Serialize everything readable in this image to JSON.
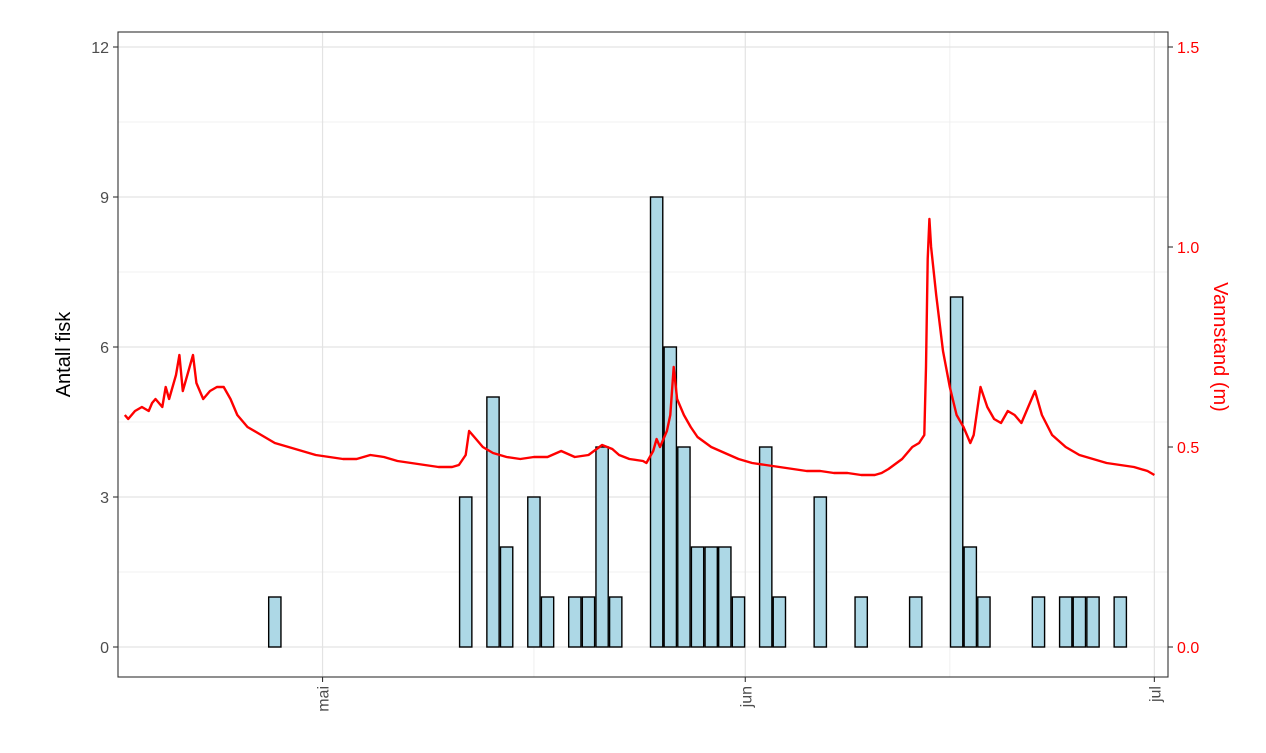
{
  "chart_data": {
    "type": "bar",
    "xlabel": "",
    "ylabel": "Antall fisk",
    "y2label": "Vannstand (m)",
    "x_range": [
      "2023-04-16",
      "2023-07-02"
    ],
    "x_ticks": [
      {
        "date": "2023-05-01",
        "label": "mai"
      },
      {
        "date": "2023-06-01",
        "label": "jun"
      },
      {
        "date": "2023-07-01",
        "label": "jul"
      }
    ],
    "ylim": [
      -0.6,
      12.3
    ],
    "yticks": [
      0,
      3,
      6,
      9,
      12
    ],
    "y2lim": [
      -0.075,
      1.5375
    ],
    "y2ticks": [
      0.0,
      0.5,
      1.0,
      1.5
    ],
    "y2_tick_labels": [
      "0.0",
      "0.5",
      "1.0",
      "1.5"
    ],
    "grid": true,
    "colors": {
      "bar_fill": "#add8e6",
      "bar_stroke": "#000000",
      "line": "#ff0000",
      "axis2_text": "#ff0000"
    },
    "bars": [
      {
        "date": "2023-04-27",
        "value": 1
      },
      {
        "date": "2023-05-11",
        "value": 3
      },
      {
        "date": "2023-05-13",
        "value": 5
      },
      {
        "date": "2023-05-14",
        "value": 2
      },
      {
        "date": "2023-05-16",
        "value": 3
      },
      {
        "date": "2023-05-17",
        "value": 1
      },
      {
        "date": "2023-05-19",
        "value": 1
      },
      {
        "date": "2023-05-20",
        "value": 1
      },
      {
        "date": "2023-05-21",
        "value": 4
      },
      {
        "date": "2023-05-22",
        "value": 1
      },
      {
        "date": "2023-05-25",
        "value": 9
      },
      {
        "date": "2023-05-26",
        "value": 6
      },
      {
        "date": "2023-05-27",
        "value": 4
      },
      {
        "date": "2023-05-28",
        "value": 2
      },
      {
        "date": "2023-05-29",
        "value": 2
      },
      {
        "date": "2023-05-30",
        "value": 2
      },
      {
        "date": "2023-05-31",
        "value": 1
      },
      {
        "date": "2023-06-02",
        "value": 4
      },
      {
        "date": "2023-06-03",
        "value": 1
      },
      {
        "date": "2023-06-06",
        "value": 3
      },
      {
        "date": "2023-06-09",
        "value": 1
      },
      {
        "date": "2023-06-13",
        "value": 1
      },
      {
        "date": "2023-06-16",
        "value": 7
      },
      {
        "date": "2023-06-17",
        "value": 2
      },
      {
        "date": "2023-06-18",
        "value": 1
      },
      {
        "date": "2023-06-22",
        "value": 1
      },
      {
        "date": "2023-06-24",
        "value": 1
      },
      {
        "date": "2023-06-25",
        "value": 1
      },
      {
        "date": "2023-06-26",
        "value": 1
      },
      {
        "date": "2023-06-28",
        "value": 1
      }
    ],
    "water_level": [
      [
        "2023-04-16 12:00",
        0.58
      ],
      [
        "2023-04-16 18:00",
        0.57
      ],
      [
        "2023-04-17 06:00",
        0.59
      ],
      [
        "2023-04-17 18:00",
        0.6
      ],
      [
        "2023-04-18 06:00",
        0.59
      ],
      [
        "2023-04-18 12:00",
        0.61
      ],
      [
        "2023-04-18 18:00",
        0.62
      ],
      [
        "2023-04-19 06:00",
        0.6
      ],
      [
        "2023-04-19 12:00",
        0.65
      ],
      [
        "2023-04-19 18:00",
        0.62
      ],
      [
        "2023-04-20 06:00",
        0.68
      ],
      [
        "2023-04-20 12:00",
        0.73
      ],
      [
        "2023-04-20 18:00",
        0.64
      ],
      [
        "2023-04-21 06:00",
        0.7
      ],
      [
        "2023-04-21 12:00",
        0.73
      ],
      [
        "2023-04-21 18:00",
        0.66
      ],
      [
        "2023-04-22 06:00",
        0.62
      ],
      [
        "2023-04-22 18:00",
        0.64
      ],
      [
        "2023-04-23 06:00",
        0.65
      ],
      [
        "2023-04-23 18:00",
        0.65
      ],
      [
        "2023-04-24 06:00",
        0.62
      ],
      [
        "2023-04-24 18:00",
        0.58
      ],
      [
        "2023-04-25 12:00",
        0.55
      ],
      [
        "2023-04-26 12:00",
        0.53
      ],
      [
        "2023-04-27 12:00",
        0.51
      ],
      [
        "2023-04-28 12:00",
        0.5
      ],
      [
        "2023-04-29 12:00",
        0.49
      ],
      [
        "2023-04-30 12:00",
        0.48
      ],
      [
        "2023-05-01 12:00",
        0.475
      ],
      [
        "2023-05-02 12:00",
        0.47
      ],
      [
        "2023-05-03 12:00",
        0.47
      ],
      [
        "2023-05-04 12:00",
        0.48
      ],
      [
        "2023-05-05 12:00",
        0.475
      ],
      [
        "2023-05-06 12:00",
        0.465
      ],
      [
        "2023-05-07 12:00",
        0.46
      ],
      [
        "2023-05-08 12:00",
        0.455
      ],
      [
        "2023-05-09 12:00",
        0.45
      ],
      [
        "2023-05-10 12:00",
        0.45
      ],
      [
        "2023-05-11 00:00",
        0.455
      ],
      [
        "2023-05-11 12:00",
        0.48
      ],
      [
        "2023-05-11 18:00",
        0.54
      ],
      [
        "2023-05-12 06:00",
        0.52
      ],
      [
        "2023-05-12 18:00",
        0.5
      ],
      [
        "2023-05-13 12:00",
        0.485
      ],
      [
        "2023-05-14 12:00",
        0.475
      ],
      [
        "2023-05-15 12:00",
        0.47
      ],
      [
        "2023-05-16 12:00",
        0.475
      ],
      [
        "2023-05-17 12:00",
        0.475
      ],
      [
        "2023-05-18 12:00",
        0.49
      ],
      [
        "2023-05-19 12:00",
        0.475
      ],
      [
        "2023-05-20 12:00",
        0.48
      ],
      [
        "2023-05-21 12:00",
        0.505
      ],
      [
        "2023-05-22 06:00",
        0.495
      ],
      [
        "2023-05-22 18:00",
        0.48
      ],
      [
        "2023-05-23 12:00",
        0.47
      ],
      [
        "2023-05-24 12:00",
        0.465
      ],
      [
        "2023-05-24 18:00",
        0.46
      ],
      [
        "2023-05-25 06:00",
        0.49
      ],
      [
        "2023-05-25 12:00",
        0.52
      ],
      [
        "2023-05-25 18:00",
        0.5
      ],
      [
        "2023-05-26 06:00",
        0.54
      ],
      [
        "2023-05-26 12:00",
        0.58
      ],
      [
        "2023-05-26 18:00",
        0.7
      ],
      [
        "2023-05-27 00:00",
        0.62
      ],
      [
        "2023-05-27 12:00",
        0.58
      ],
      [
        "2023-05-28 00:00",
        0.55
      ],
      [
        "2023-05-28 12:00",
        0.525
      ],
      [
        "2023-05-29 12:00",
        0.5
      ],
      [
        "2023-05-30 12:00",
        0.485
      ],
      [
        "2023-05-31 12:00",
        0.47
      ],
      [
        "2023-06-01 12:00",
        0.46
      ],
      [
        "2023-06-02 12:00",
        0.455
      ],
      [
        "2023-06-03 12:00",
        0.45
      ],
      [
        "2023-06-04 12:00",
        0.445
      ],
      [
        "2023-06-05 12:00",
        0.44
      ],
      [
        "2023-06-06 12:00",
        0.44
      ],
      [
        "2023-06-07 12:00",
        0.435
      ],
      [
        "2023-06-08 12:00",
        0.435
      ],
      [
        "2023-06-09 12:00",
        0.43
      ],
      [
        "2023-06-10 12:00",
        0.43
      ],
      [
        "2023-06-11 00:00",
        0.435
      ],
      [
        "2023-06-11 12:00",
        0.445
      ],
      [
        "2023-06-12 12:00",
        0.47
      ],
      [
        "2023-06-13 06:00",
        0.5
      ],
      [
        "2023-06-13 18:00",
        0.51
      ],
      [
        "2023-06-14 03:00",
        0.53
      ],
      [
        "2023-06-14 06:00",
        0.7
      ],
      [
        "2023-06-14 09:00",
        0.97
      ],
      [
        "2023-06-14 12:00",
        1.07
      ],
      [
        "2023-06-14 15:00",
        1.0
      ],
      [
        "2023-06-15 00:00",
        0.88
      ],
      [
        "2023-06-15 12:00",
        0.74
      ],
      [
        "2023-06-16 00:00",
        0.65
      ],
      [
        "2023-06-16 12:00",
        0.58
      ],
      [
        "2023-06-17 00:00",
        0.55
      ],
      [
        "2023-06-17 12:00",
        0.51
      ],
      [
        "2023-06-17 18:00",
        0.53
      ],
      [
        "2023-06-18 06:00",
        0.65
      ],
      [
        "2023-06-18 18:00",
        0.6
      ],
      [
        "2023-06-19 06:00",
        0.57
      ],
      [
        "2023-06-19 18:00",
        0.56
      ],
      [
        "2023-06-20 06:00",
        0.59
      ],
      [
        "2023-06-20 18:00",
        0.58
      ],
      [
        "2023-06-21 06:00",
        0.56
      ],
      [
        "2023-06-21 18:00",
        0.6
      ],
      [
        "2023-06-22 06:00",
        0.64
      ],
      [
        "2023-06-22 18:00",
        0.58
      ],
      [
        "2023-06-23 12:00",
        0.53
      ],
      [
        "2023-06-24 12:00",
        0.5
      ],
      [
        "2023-06-25 12:00",
        0.48
      ],
      [
        "2023-06-26 12:00",
        0.47
      ],
      [
        "2023-06-27 12:00",
        0.46
      ],
      [
        "2023-06-28 12:00",
        0.455
      ],
      [
        "2023-06-29 12:00",
        0.45
      ],
      [
        "2023-06-30 12:00",
        0.44
      ],
      [
        "2023-07-01 00:00",
        0.43
      ]
    ]
  }
}
